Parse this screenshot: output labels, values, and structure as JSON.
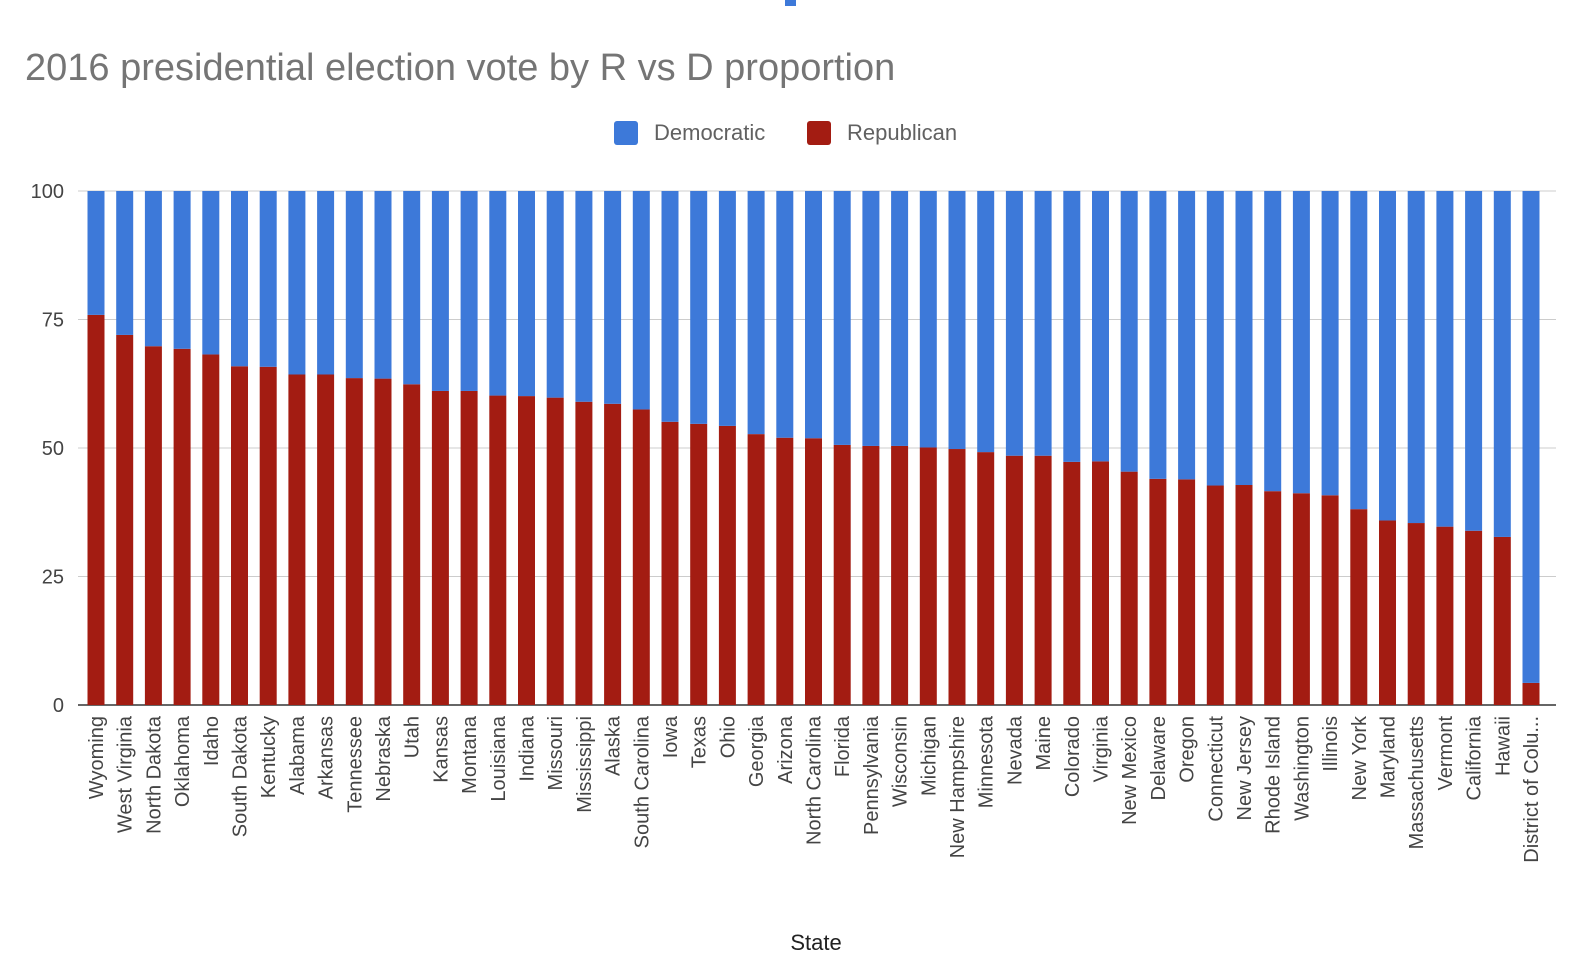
{
  "chart_data": {
    "type": "bar",
    "stacked": true,
    "title": "2016 presidential election vote by R vs D proportion",
    "xlabel": "State",
    "ylabel": "",
    "ylim": [
      0,
      100
    ],
    "yticks": [
      0,
      25,
      50,
      75,
      100
    ],
    "grid": true,
    "legend_position": "top-center",
    "categories": [
      "Wyoming",
      "West Virginia",
      "North Dakota",
      "Oklahoma",
      "Idaho",
      "South Dakota",
      "Kentucky",
      "Alabama",
      "Arkansas",
      "Tennessee",
      "Nebraska",
      "Utah",
      "Kansas",
      "Montana",
      "Louisiana",
      "Indiana",
      "Missouri",
      "Mississippi",
      "Alaska",
      "South Carolina",
      "Iowa",
      "Texas",
      "Ohio",
      "Georgia",
      "Arizona",
      "North Carolina",
      "Florida",
      "Pennsylvania",
      "Wisconsin",
      "Michigan",
      "New Hampshire",
      "Minnesota",
      "Nevada",
      "Maine",
      "Colorado",
      "Virginia",
      "New Mexico",
      "Delaware",
      "Oregon",
      "Connecticut",
      "New Jersey",
      "Rhode Island",
      "Washington",
      "Illinois",
      "New York",
      "Maryland",
      "Massachusetts",
      "Vermont",
      "California",
      "Hawaii",
      "District of Colu..."
    ],
    "series": [
      {
        "name": "Republican",
        "color": "#a31c12",
        "values": [
          75.9,
          72.0,
          69.8,
          69.3,
          68.2,
          65.9,
          65.8,
          64.3,
          64.3,
          63.6,
          63.5,
          62.4,
          61.1,
          61.1,
          60.2,
          60.1,
          59.8,
          59.0,
          58.6,
          57.5,
          55.1,
          54.7,
          54.3,
          52.7,
          52.0,
          51.9,
          50.6,
          50.4,
          50.4,
          50.1,
          49.8,
          49.2,
          48.5,
          48.5,
          47.3,
          47.4,
          45.4,
          44.0,
          43.9,
          42.7,
          42.8,
          41.6,
          41.2,
          40.8,
          38.1,
          35.9,
          35.4,
          34.7,
          33.9,
          32.7,
          4.3
        ]
      },
      {
        "name": "Democratic",
        "color": "#3d79d9",
        "values": [
          24.1,
          28.0,
          30.2,
          30.7,
          31.8,
          34.1,
          34.2,
          35.7,
          35.7,
          36.4,
          36.5,
          37.6,
          38.9,
          38.9,
          39.8,
          39.9,
          40.2,
          41.0,
          41.4,
          42.5,
          44.9,
          45.3,
          45.7,
          47.3,
          48.0,
          48.1,
          49.4,
          49.6,
          49.6,
          49.9,
          50.2,
          50.8,
          51.5,
          51.5,
          52.7,
          52.6,
          54.6,
          56.0,
          56.1,
          57.3,
          57.2,
          58.4,
          58.8,
          59.2,
          61.9,
          64.1,
          64.6,
          65.3,
          66.1,
          67.3,
          95.7
        ]
      }
    ],
    "legend": [
      {
        "name": "Democratic",
        "color": "#3d79d9"
      },
      {
        "name": "Republican",
        "color": "#a31c12"
      }
    ]
  }
}
